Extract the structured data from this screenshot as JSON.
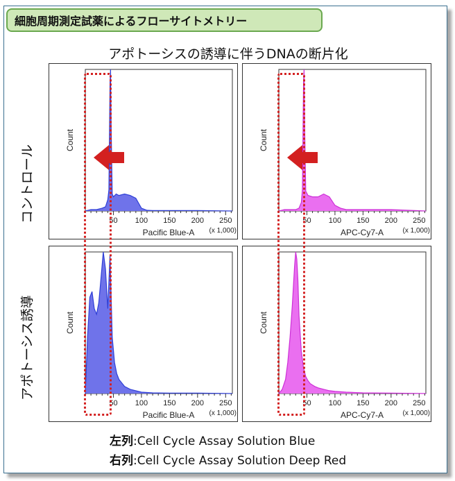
{
  "header": {
    "title": "細胞周期測定試薬によるフローサイトメトリー"
  },
  "subtitle": "アポトーシスの誘導に伴うDNAの断片化",
  "rows": [
    "コントロール",
    "アポトーシス誘導"
  ],
  "footer": [
    {
      "label": "左列",
      "sep": ":",
      "text": "Cell Cycle Assay Solution Blue"
    },
    {
      "label": "右列",
      "sep": ":",
      "text": "Cell Cycle Assay Solution Deep Red"
    }
  ],
  "colors": {
    "blue": "#2f3fd6",
    "blue_fill": "#6f73ea",
    "magenta": "#cc2fd6",
    "magenta_fill": "#ea6ff0",
    "highlight": "#d32020"
  },
  "chart_data": [
    {
      "type": "area",
      "panel": "control-blue",
      "xlabel": "Pacific Blue-A",
      "ylabel": "Count",
      "xunit": "(x 1,000)",
      "xticks": [
        50,
        100,
        150,
        200,
        250
      ],
      "xlim": [
        0,
        262
      ],
      "ylim": [
        0,
        100
      ],
      "x": [
        0,
        10,
        20,
        30,
        36,
        40,
        42,
        44,
        45,
        46,
        48,
        50,
        55,
        60,
        70,
        80,
        90,
        100,
        110,
        120,
        150,
        200,
        262
      ],
      "y": [
        0,
        1,
        1,
        2,
        3,
        8,
        15,
        90,
        100,
        60,
        12,
        10,
        12,
        11,
        12,
        11,
        9,
        2,
        0.5,
        0.3,
        0.3,
        0.3,
        0
      ]
    },
    {
      "type": "area",
      "panel": "control-red",
      "xlabel": "APC-Cy7-A",
      "ylabel": "Count",
      "xunit": "(x 1,000)",
      "xticks": [
        50,
        100,
        150,
        200,
        250
      ],
      "xlim": [
        0,
        262
      ],
      "ylim": [
        0,
        100
      ],
      "x": [
        0,
        10,
        20,
        30,
        36,
        40,
        42,
        44,
        45,
        46,
        48,
        52,
        60,
        70,
        80,
        90,
        100,
        110,
        120,
        150,
        200,
        262
      ],
      "y": [
        0,
        1,
        1,
        1,
        2,
        6,
        15,
        90,
        100,
        60,
        14,
        11,
        10,
        10,
        12,
        10,
        4,
        2,
        1,
        1,
        1,
        0
      ]
    },
    {
      "type": "area",
      "panel": "apoptosis-blue",
      "xlabel": "Pacific Blue-A",
      "ylabel": "Count",
      "xunit": "(x 1,000)",
      "xticks": [
        50,
        100,
        150,
        200,
        250
      ],
      "xlim": [
        0,
        262
      ],
      "ylim": [
        0,
        100
      ],
      "x": [
        0,
        4,
        8,
        12,
        16,
        20,
        24,
        28,
        32,
        36,
        40,
        44,
        48,
        52,
        56,
        60,
        64,
        70,
        80,
        90,
        100,
        120,
        150,
        200,
        262
      ],
      "y": [
        0,
        40,
        68,
        72,
        60,
        56,
        64,
        82,
        100,
        88,
        60,
        98,
        40,
        22,
        14,
        10,
        8,
        5,
        3,
        2,
        1,
        0.5,
        0.3,
        0.3,
        0
      ]
    },
    {
      "type": "area",
      "panel": "apoptosis-red",
      "xlabel": "APC-Cy7-A",
      "ylabel": "Count",
      "xunit": "(x 1,000)",
      "xticks": [
        50,
        100,
        150,
        200,
        250
      ],
      "xlim": [
        0,
        262
      ],
      "ylim": [
        0,
        100
      ],
      "x": [
        0,
        6,
        12,
        16,
        20,
        24,
        28,
        30,
        32,
        34,
        36,
        40,
        44,
        48,
        52,
        56,
        60,
        64,
        70,
        80,
        90,
        100,
        120,
        150,
        200,
        262
      ],
      "y": [
        0,
        3,
        10,
        22,
        40,
        62,
        90,
        100,
        95,
        80,
        55,
        30,
        18,
        12,
        9,
        7,
        6,
        5,
        4,
        3,
        2,
        1.5,
        1,
        0.5,
        0.3,
        0
      ]
    }
  ]
}
